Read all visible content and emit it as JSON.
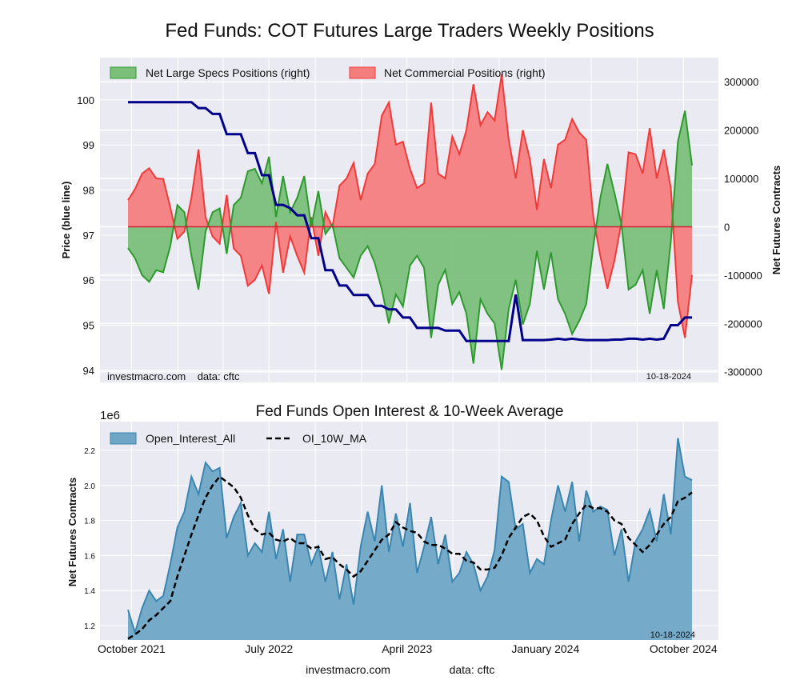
{
  "figure_title": "Fed Funds: COT Futures Large Traders Weekly Positions",
  "footer": {
    "site": "investmacro.com",
    "source": "data: cftc"
  },
  "colors": {
    "specs": "#2e9a2e",
    "specs_fill": "#7bbf7b",
    "commercial": "#f03a3a",
    "commercial_fill": "#f47e7e",
    "price": "#00008b",
    "oi": "#3a86b0",
    "oi_fill": "#6fa6c6",
    "ma": "#000000",
    "plot_bg": "#eaeaf2"
  },
  "chart_data": [
    {
      "type": "area",
      "title": "",
      "ylabel_left": "Price (blue line)",
      "ylabel_right": "Net Futures Contracts",
      "ylim_left": [
        93.73,
        100.94
      ],
      "ylim_right": [
        -322000,
        350000
      ],
      "yticks_left": [
        "94",
        "95",
        "96",
        "97",
        "98",
        "99",
        "100"
      ],
      "yticks_right": [
        "-300000",
        "-200000",
        "-100000",
        "0",
        "100000",
        "200000",
        "300000"
      ],
      "grid": true,
      "legend_position": "top-left",
      "annotation_left": "investmacro.com    data: cftc",
      "annotation_right": "10-18-2024",
      "x": [
        "2021-09-24",
        "2021-10-08",
        "2021-10-22",
        "2021-11-05",
        "2021-11-19",
        "2021-12-03",
        "2021-12-17",
        "2021-12-31",
        "2022-01-14",
        "2022-01-28",
        "2022-02-11",
        "2022-02-25",
        "2022-03-11",
        "2022-03-25",
        "2022-04-08",
        "2022-04-22",
        "2022-05-06",
        "2022-05-20",
        "2022-06-03",
        "2022-06-17",
        "2022-07-01",
        "2022-07-15",
        "2022-07-29",
        "2022-08-12",
        "2022-08-26",
        "2022-09-09",
        "2022-09-23",
        "2022-10-07",
        "2022-10-21",
        "2022-11-04",
        "2022-11-18",
        "2022-12-02",
        "2022-12-16",
        "2022-12-30",
        "2023-01-13",
        "2023-01-27",
        "2023-02-10",
        "2023-02-24",
        "2023-03-10",
        "2023-03-24",
        "2023-04-07",
        "2023-04-21",
        "2023-05-05",
        "2023-05-19",
        "2023-06-02",
        "2023-06-16",
        "2023-06-30",
        "2023-07-14",
        "2023-07-28",
        "2023-08-11",
        "2023-08-25",
        "2023-09-08",
        "2023-09-22",
        "2023-10-06",
        "2023-10-20",
        "2023-11-03",
        "2023-11-17",
        "2023-12-01",
        "2023-12-15",
        "2023-12-29",
        "2024-01-12",
        "2024-01-26",
        "2024-02-09",
        "2024-02-23",
        "2024-03-08",
        "2024-03-22",
        "2024-04-05",
        "2024-04-19",
        "2024-05-03",
        "2024-05-17",
        "2024-05-31",
        "2024-06-14",
        "2024-06-28",
        "2024-07-12",
        "2024-07-26",
        "2024-08-09",
        "2024-08-23",
        "2024-09-06",
        "2024-09-20",
        "2024-10-04",
        "2024-10-18"
      ],
      "series": [
        {
          "name": "Net Large Specs Positions (right)",
          "axis": "right",
          "values": [
            -44000,
            -65000,
            -100000,
            -114000,
            -90000,
            -94000,
            -40000,
            45000,
            30000,
            -60000,
            -130000,
            -10000,
            30000,
            38000,
            -56000,
            45000,
            60000,
            115000,
            120000,
            90000,
            145000,
            20000,
            105000,
            30000,
            60000,
            105000,
            0,
            74000,
            -15000,
            5000,
            -65000,
            -85000,
            -105000,
            -60000,
            -40000,
            -75000,
            -130000,
            -200000,
            -140000,
            -165000,
            -80000,
            -60000,
            -85000,
            -230000,
            -120000,
            -89000,
            -160000,
            -135000,
            -180000,
            -283000,
            -150000,
            -180000,
            -200000,
            -296000,
            -170000,
            -110000,
            -202000,
            -160000,
            -50000,
            -130000,
            -53000,
            -150000,
            -180000,
            -222000,
            -195000,
            -160000,
            -40000,
            60000,
            130000,
            70000,
            5000,
            -130000,
            -120000,
            -90000,
            -180000,
            -90000,
            -170000,
            -30000,
            176000,
            240000,
            127000
          ]
        },
        {
          "name": "Net Commercial Positions (right)",
          "axis": "right",
          "values": [
            55000,
            78000,
            110000,
            121000,
            100000,
            99000,
            40000,
            -25000,
            -10000,
            60000,
            160000,
            20000,
            -20000,
            -35000,
            66000,
            -45000,
            -60000,
            -122000,
            -110000,
            -80000,
            -139000,
            10000,
            -95000,
            -20000,
            -60000,
            -95000,
            20000,
            -60000,
            30000,
            0,
            85000,
            100000,
            132000,
            55000,
            110000,
            130000,
            230000,
            257000,
            170000,
            176000,
            120000,
            80000,
            90000,
            257000,
            110000,
            100000,
            187000,
            150000,
            200000,
            295000,
            210000,
            237000,
            220000,
            315000,
            180000,
            100000,
            200000,
            140000,
            35000,
            140000,
            80000,
            170000,
            180000,
            223000,
            195000,
            180000,
            20000,
            -61000,
            -128000,
            -70000,
            10000,
            154000,
            150000,
            110000,
            204000,
            100000,
            160000,
            80000,
            -155000,
            -230000,
            -100000
          ]
        },
        {
          "name": "Price",
          "axis": "left",
          "values": [
            99.95,
            99.95,
            99.95,
            99.95,
            99.95,
            99.95,
            99.95,
            99.95,
            99.95,
            99.95,
            99.82,
            99.82,
            99.69,
            99.69,
            99.24,
            99.24,
            99.24,
            98.82,
            98.82,
            98.33,
            98.33,
            97.67,
            97.67,
            97.6,
            97.44,
            97.44,
            96.93,
            96.93,
            96.22,
            96.22,
            95.88,
            95.88,
            95.67,
            95.67,
            95.67,
            95.43,
            95.43,
            95.35,
            95.35,
            95.17,
            95.17,
            94.94,
            94.94,
            94.94,
            94.94,
            94.88,
            94.88,
            94.88,
            94.65,
            94.65,
            94.65,
            94.65,
            94.65,
            94.65,
            94.65,
            95.68,
            94.67,
            94.67,
            94.67,
            94.67,
            94.68,
            94.7,
            94.68,
            94.7,
            94.68,
            94.67,
            94.67,
            94.67,
            94.67,
            94.68,
            94.68,
            94.7,
            94.7,
            94.68,
            94.7,
            94.68,
            94.7,
            95.0,
            95.0,
            95.17,
            95.17
          ]
        }
      ]
    },
    {
      "type": "area",
      "title": "Fed Funds Open Interest & 10-Week Average",
      "ylabel": "Net Futures Contracts",
      "yscale_label": "1e6",
      "ylim": [
        1.118,
        2.364
      ],
      "yticks": [
        "1.2",
        "1.4",
        "1.6",
        "1.8",
        "2.0",
        "2.2"
      ],
      "xticks": [
        {
          "date": "2021-10-01",
          "label": "October 2021"
        },
        {
          "date": "2022-07-01",
          "label": "July 2022"
        },
        {
          "date": "2023-04-01",
          "label": "April 2023"
        },
        {
          "date": "2024-01-01",
          "label": "January 2024"
        },
        {
          "date": "2024-10-01",
          "label": "October 2024"
        }
      ],
      "grid": true,
      "legend_position": "top-left",
      "annotation_right": "10-18-2024",
      "series": [
        {
          "name": "Open_Interest_All",
          "unit": "1e6",
          "values": [
            1.29,
            1.16,
            1.3,
            1.4,
            1.34,
            1.37,
            1.55,
            1.76,
            1.85,
            2.05,
            1.95,
            2.13,
            2.08,
            2.1,
            1.7,
            1.82,
            1.9,
            1.6,
            1.67,
            1.62,
            1.85,
            1.58,
            1.75,
            1.45,
            1.72,
            1.72,
            1.55,
            1.65,
            1.45,
            1.62,
            1.35,
            1.55,
            1.32,
            1.65,
            1.85,
            1.68,
            2.0,
            1.62,
            1.84,
            1.65,
            1.9,
            1.5,
            1.65,
            1.82,
            1.55,
            1.72,
            1.45,
            1.5,
            1.62,
            1.55,
            1.4,
            1.48,
            1.63,
            2.05,
            2.02,
            1.75,
            1.78,
            1.5,
            1.58,
            1.55,
            1.8,
            2.0,
            1.85,
            2.02,
            1.68,
            1.97,
            1.85,
            1.88,
            1.86,
            1.6,
            1.75,
            1.45,
            1.68,
            1.75,
            1.86,
            1.68,
            1.95,
            1.72,
            2.27,
            2.05,
            2.03
          ]
        },
        {
          "name": "OI_10W_MA",
          "unit": "1e6",
          "values": [
            1.125,
            1.15,
            1.18,
            1.23,
            1.26,
            1.3,
            1.34,
            1.48,
            1.6,
            1.72,
            1.83,
            1.93,
            2.0,
            2.05,
            2.02,
            1.99,
            1.93,
            1.83,
            1.75,
            1.72,
            1.73,
            1.69,
            1.68,
            1.7,
            1.67,
            1.67,
            1.64,
            1.65,
            1.58,
            1.59,
            1.55,
            1.52,
            1.48,
            1.51,
            1.57,
            1.63,
            1.69,
            1.72,
            1.79,
            1.76,
            1.74,
            1.73,
            1.68,
            1.66,
            1.66,
            1.64,
            1.61,
            1.61,
            1.57,
            1.56,
            1.52,
            1.52,
            1.53,
            1.6,
            1.7,
            1.76,
            1.82,
            1.84,
            1.8,
            1.71,
            1.65,
            1.67,
            1.69,
            1.78,
            1.84,
            1.89,
            1.87,
            1.87,
            1.85,
            1.8,
            1.78,
            1.7,
            1.66,
            1.62,
            1.66,
            1.72,
            1.78,
            1.82,
            1.91,
            1.93,
            1.96
          ]
        }
      ]
    }
  ]
}
